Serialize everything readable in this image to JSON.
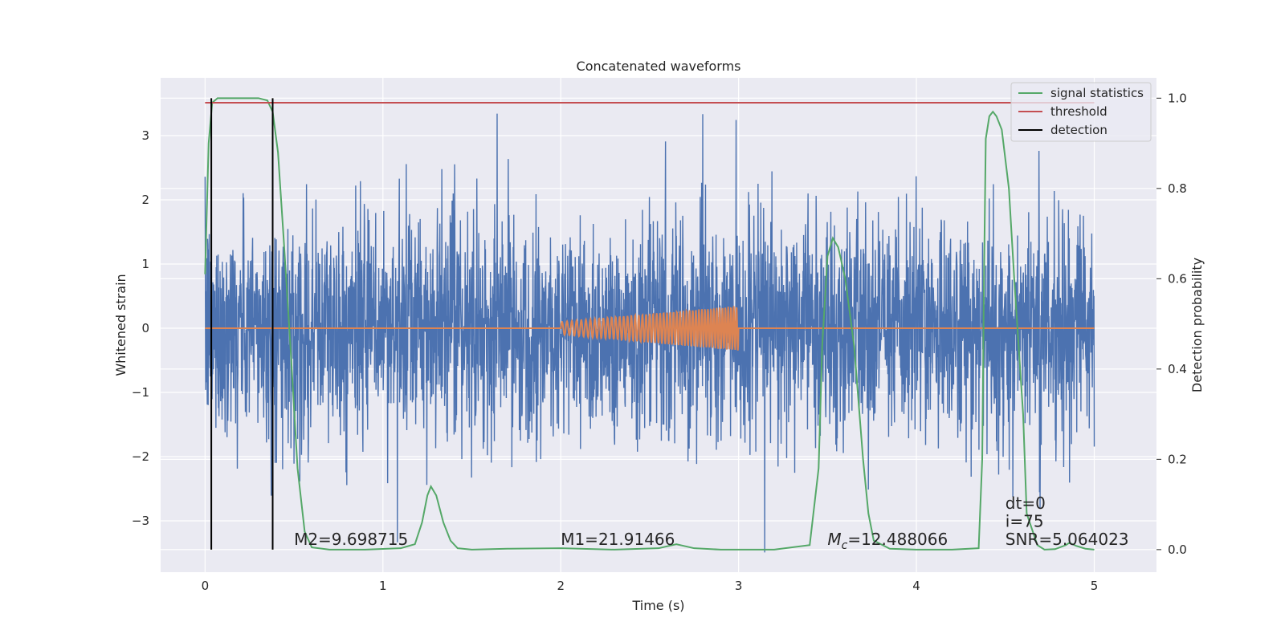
{
  "chart_data": {
    "type": "line",
    "title": "Concatenated waveforms",
    "xlabel": "Time (s)",
    "ylabel": "Whitened strain",
    "y2label": "Detection probability",
    "xlim": [
      -0.25,
      5.35
    ],
    "ylim": [
      -3.8,
      3.9
    ],
    "y2lim": [
      -0.05,
      1.045
    ],
    "x_ticks": [
      0,
      1,
      2,
      3,
      4,
      5
    ],
    "y_ticks": [
      -3,
      -2,
      -1,
      0,
      1,
      2,
      3
    ],
    "y2_ticks": [
      0.0,
      0.2,
      0.4,
      0.6,
      0.8,
      1.0
    ],
    "y2_tick_labels": [
      "0.0",
      "0.2",
      "0.4",
      "0.6",
      "0.8",
      "1.0"
    ],
    "grid": true,
    "legend_position": "top-right",
    "colors": {
      "noise": "#4c72b0",
      "waveform": "#dd8452",
      "signal_statistics": "#55a868",
      "threshold": "#c44e52",
      "detection": "#000000",
      "background": "#eaeaf2"
    },
    "series": [
      {
        "name": "",
        "axis": "left",
        "kind": "noise",
        "x_range": [
          0,
          5
        ],
        "envelope": {
          "typical_abs": 1.5,
          "max_abs": 3.5
        }
      },
      {
        "name": "",
        "axis": "left",
        "kind": "chirp",
        "x_range": [
          0,
          5
        ],
        "chirp_start": 2.0,
        "chirp_end": 3.0,
        "amplitude_start": 0.1,
        "amplitude_end": 0.35
      },
      {
        "name": "signal statistics",
        "axis": "right",
        "x": [
          0.0,
          0.02,
          0.04,
          0.07,
          0.1,
          0.2,
          0.3,
          0.35,
          0.38,
          0.41,
          0.44,
          0.48,
          0.52,
          0.56,
          0.6,
          0.7,
          0.9,
          1.1,
          1.18,
          1.22,
          1.25,
          1.27,
          1.3,
          1.34,
          1.38,
          1.42,
          1.5,
          1.7,
          2.0,
          2.3,
          2.55,
          2.65,
          2.75,
          2.9,
          3.2,
          3.4,
          3.45,
          3.47,
          3.5,
          3.53,
          3.56,
          3.6,
          3.65,
          3.7,
          3.73,
          3.76,
          3.85,
          4.0,
          4.2,
          4.35,
          4.37,
          4.38,
          4.39,
          4.41,
          4.43,
          4.45,
          4.48,
          4.52,
          4.55,
          4.6,
          4.62,
          4.68,
          4.72,
          4.78,
          4.84,
          4.86,
          4.9,
          4.95,
          5.0
        ],
        "y": [
          0.61,
          0.9,
          0.99,
          1.0,
          1.0,
          1.0,
          1.0,
          0.995,
          0.97,
          0.88,
          0.7,
          0.45,
          0.18,
          0.04,
          0.005,
          0.0,
          0.0,
          0.003,
          0.012,
          0.06,
          0.12,
          0.14,
          0.12,
          0.06,
          0.02,
          0.003,
          0.0,
          0.002,
          0.003,
          0.0,
          0.003,
          0.012,
          0.003,
          0.0,
          0.0,
          0.01,
          0.18,
          0.45,
          0.65,
          0.69,
          0.67,
          0.6,
          0.45,
          0.2,
          0.08,
          0.02,
          0.002,
          0.0,
          0.0,
          0.003,
          0.2,
          0.6,
          0.91,
          0.96,
          0.97,
          0.96,
          0.93,
          0.8,
          0.6,
          0.3,
          0.08,
          0.01,
          0.0,
          0.001,
          0.01,
          0.015,
          0.008,
          0.002,
          0.0
        ]
      },
      {
        "name": "threshold",
        "axis": "right",
        "x": [
          0,
          5
        ],
        "y": [
          0.99,
          0.99
        ]
      },
      {
        "name": "detection",
        "axis": "right",
        "kind": "vlines",
        "x": [
          0.035,
          0.38
        ],
        "y_range": [
          0.0,
          1.0
        ]
      }
    ],
    "legend": [
      "signal statistics",
      "threshold",
      "detection"
    ],
    "annotations": [
      {
        "id": "m2",
        "text": "M2=9.698715",
        "x": 0.5,
        "y2": 0.0
      },
      {
        "id": "m1",
        "text": "M1=21.91466",
        "x": 2.0,
        "y2": 0.0
      },
      {
        "id": "mc",
        "text_main": "M",
        "text_sub": "c",
        "text_rest": "=12.488066",
        "x": 3.5,
        "y2": 0.0
      },
      {
        "id": "snr",
        "text": "SNR=5.064023",
        "x": 4.5,
        "y2": 0.0
      },
      {
        "id": "i",
        "text": "i=75",
        "x": 4.5,
        "y2": 0.04
      },
      {
        "id": "dt",
        "text": "dt=0",
        "x": 4.5,
        "y2": 0.08
      }
    ]
  }
}
